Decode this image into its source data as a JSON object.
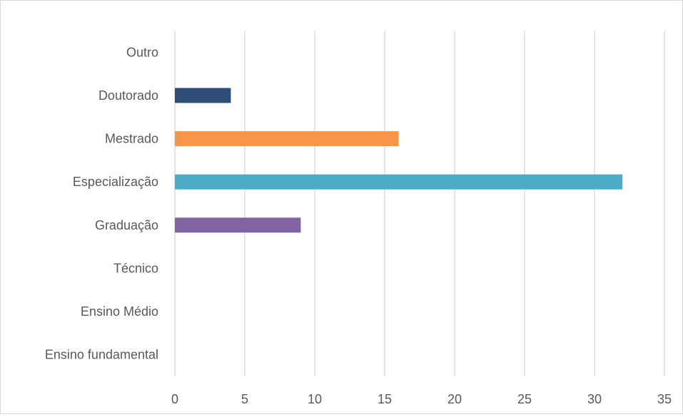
{
  "chart_data": {
    "type": "bar",
    "orientation": "horizontal",
    "categories": [
      "Ensino fundamental",
      "Ensino Médio",
      "Técnico",
      "Graduação",
      "Especialização",
      "Mestrado",
      "Doutorado",
      "Outro"
    ],
    "values": [
      0,
      0,
      0,
      9,
      32,
      16,
      4,
      0
    ],
    "bar_colors": [
      "#4472c4",
      "#ed7d31",
      "#a5a5a5",
      "#8064a2",
      "#4bacc6",
      "#f79646",
      "#2c4d75",
      "#772c2a"
    ],
    "xlim": [
      0,
      35
    ],
    "xticks": [
      "0",
      "5",
      "10",
      "15",
      "20",
      "25",
      "30",
      "35"
    ],
    "title": "",
    "xlabel": "",
    "ylabel": "",
    "grid": "vertical",
    "legend": "none"
  }
}
